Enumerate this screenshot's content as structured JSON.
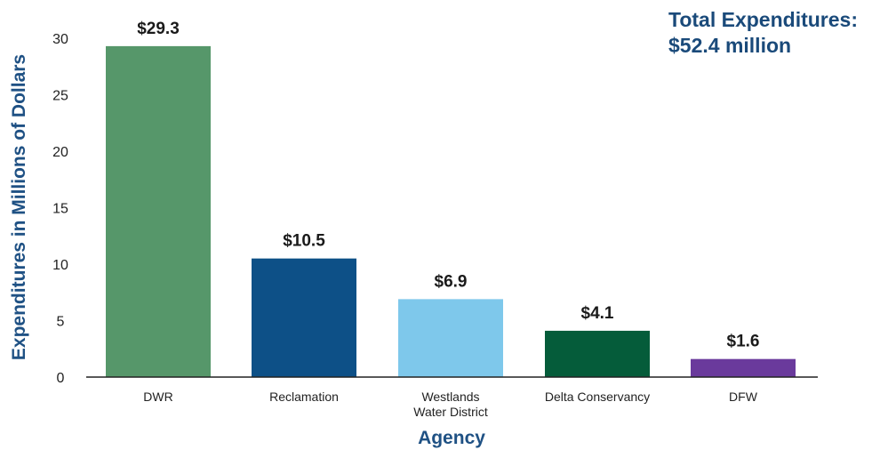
{
  "chart_data": {
    "type": "bar",
    "categories": [
      "DWR",
      "Reclamation",
      "Westlands\nWater District",
      "Delta Conservancy",
      "DFW"
    ],
    "values": [
      29.3,
      10.5,
      6.9,
      4.1,
      1.6
    ],
    "data_labels": [
      "$29.3",
      "$10.5",
      "$6.9",
      "$4.1",
      "$1.6"
    ],
    "bar_colors": [
      "#56976a",
      "#0d5087",
      "#7ec8eb",
      "#055c3a",
      "#6a3a9c"
    ],
    "xlabel": "Agency",
    "ylabel": "Expenditures in Millions of Dollars",
    "ylim": [
      0,
      30
    ],
    "yticks": [
      0,
      5,
      10,
      15,
      20,
      25,
      30
    ],
    "grid": false,
    "annotation": [
      "Total Expenditures:",
      "$52.4 million"
    ],
    "colors": {
      "axis_title": "#1f5184",
      "annotation": "#1a4a7a",
      "axis_line": "#222222"
    }
  }
}
